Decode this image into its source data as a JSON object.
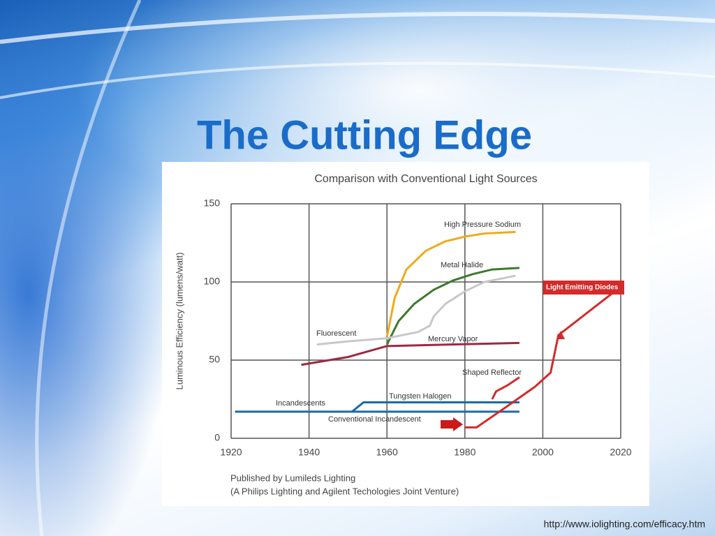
{
  "slide": {
    "title": "The Cutting Edge",
    "source_url": "http://www.iolighting.com/efficacy.htm"
  },
  "chart_data": {
    "type": "line",
    "title": "Comparison with Conventional Light Sources",
    "y_label": "Luminous Efficiency (lumens/watt)",
    "xlim": [
      1920,
      2020
    ],
    "xticks": [
      1920,
      1940,
      1960,
      1980,
      2000,
      2020
    ],
    "ylim": [
      0,
      150
    ],
    "yticks": [
      0,
      50,
      100,
      150
    ],
    "grid": true,
    "series": [
      {
        "name": "High Pressure Sodium",
        "color": "#f0aa1a",
        "x": [
          1960,
          1962,
          1965,
          1970,
          1975,
          1980,
          1985,
          1993
        ],
        "values": [
          65,
          90,
          108,
          120,
          126,
          129,
          131,
          132
        ]
      },
      {
        "name": "Metal Halide",
        "color": "#3c7a2c",
        "x": [
          1960,
          1963,
          1967,
          1972,
          1977,
          1982,
          1987,
          1994
        ],
        "values": [
          60,
          75,
          86,
          95,
          101,
          105,
          108,
          109
        ]
      },
      {
        "name": "Fluorescent",
        "color": "#c8c8c8",
        "x": [
          1942,
          1950,
          1960,
          1968,
          1971,
          1972,
          1975,
          1980,
          1985,
          1993
        ],
        "values": [
          60,
          62,
          64,
          68,
          72,
          78,
          86,
          94,
          100,
          104
        ]
      },
      {
        "name": "Mercury Vapor",
        "color": "#9b2a40",
        "x": [
          1938,
          1950,
          1960,
          1994
        ],
        "values": [
          47,
          52,
          59,
          61
        ]
      },
      {
        "name": "Shaped Reflector",
        "color": "#d42a2a",
        "x": [
          1987,
          1988,
          1991,
          1994
        ],
        "values": [
          25,
          30,
          34,
          39
        ]
      },
      {
        "name": "Tungsten Halogen",
        "color": "#1a6aa8",
        "x": [
          1951,
          1954,
          1994
        ],
        "values": [
          17,
          23,
          23
        ]
      },
      {
        "name": "Incandescents",
        "color": "#1a6aa8",
        "x": [
          1921,
          1994
        ],
        "values": [
          17,
          17
        ]
      },
      {
        "name": "Light Emitting Diodes",
        "color": "#d42a2a",
        "x": [
          1980,
          1983,
          1990,
          1998,
          2002,
          2004,
          2019
        ],
        "values": [
          7,
          7,
          19,
          33,
          42,
          66,
          95
        ]
      }
    ],
    "annotation": "Conventional Incandescent",
    "footnote": [
      "Published by Lumileds Lighting",
      "(A Philips Lighting and Agilent Techologies Joint Venture)"
    ]
  }
}
